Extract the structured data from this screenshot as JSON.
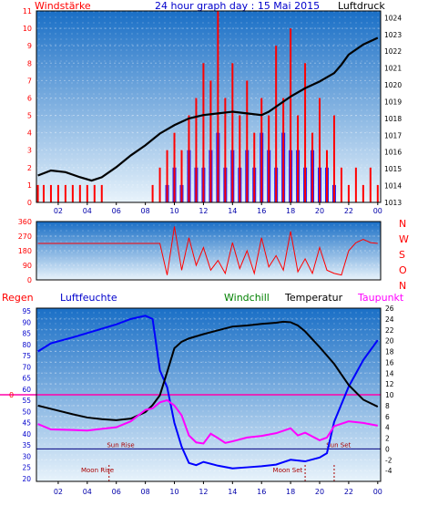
{
  "header": {
    "left_title": "Windstärke",
    "center_title": "24 hour graph day : 15 Mai 2015",
    "right_title": "Luftdruck"
  },
  "colors": {
    "plot_top": "#1a6fc6",
    "plot_bottom": "#e8f3fb",
    "wind": "#ff0000",
    "gust": "#0000ff",
    "pressure": "#000000",
    "dir": "#ff0000",
    "temperature": "#000000",
    "humidity": "#0000ff",
    "dewpoint": "#ff00ff",
    "zero_line": "#ff00aa",
    "windchill_label": "#008000"
  },
  "chart_data": [
    {
      "type": "bar",
      "name": "wind-pressure",
      "x_ticks": [
        "02",
        "04",
        "06",
        "08",
        "10",
        "12",
        "14",
        "16",
        "18",
        "20",
        "22",
        "00"
      ],
      "y_left_ticks": [
        0,
        1,
        2,
        3,
        4,
        5,
        6,
        7,
        8,
        9,
        10,
        11
      ],
      "y_right_ticks": [
        1013,
        1014,
        1015,
        1016,
        1017,
        1018,
        1019,
        1020,
        1021,
        1022,
        1023,
        1024
      ],
      "ylim_left": [
        0,
        11
      ],
      "ylim_right": [
        1013,
        1024.4
      ],
      "xlim": [
        0.5,
        24.2
      ],
      "pressure": {
        "x": [
          0.6,
          1.5,
          2.5,
          3.5,
          4.3,
          5,
          6,
          7,
          8,
          9,
          10,
          11,
          12,
          13,
          14,
          15,
          16,
          16.5,
          17,
          18,
          19,
          20,
          21,
          21.5,
          22,
          23,
          24
        ],
        "y": [
          1014.6,
          1014.9,
          1014.8,
          1014.5,
          1014.3,
          1014.5,
          1015.1,
          1015.8,
          1016.4,
          1017.1,
          1017.6,
          1018.0,
          1018.2,
          1018.3,
          1018.4,
          1018.3,
          1018.2,
          1018.4,
          1018.7,
          1019.3,
          1019.8,
          1020.2,
          1020.7,
          1021.2,
          1021.8,
          1022.4,
          1022.8
        ]
      },
      "wind": {
        "x": [
          0.6,
          1,
          1.5,
          2,
          2.5,
          3,
          3.5,
          4,
          4.5,
          5,
          5.5,
          6,
          6.5,
          7,
          7.5,
          8,
          8.5,
          9,
          9.5,
          10,
          10.5,
          11,
          11.5,
          12,
          12.5,
          13,
          13.5,
          14,
          14.5,
          15,
          15.5,
          16,
          16.5,
          17,
          17.5,
          18,
          18.5,
          19,
          19.5,
          20,
          20.5,
          21,
          21.5,
          22,
          22.5,
          23,
          23.5,
          24
        ],
        "y": [
          1,
          1,
          1,
          1,
          1,
          1,
          1,
          1,
          1,
          1,
          0,
          0,
          0,
          0,
          0,
          0,
          1,
          2,
          3,
          4,
          3,
          5,
          6,
          8,
          7,
          11,
          6,
          8,
          5,
          7,
          4,
          6,
          5,
          9,
          6,
          10,
          5,
          8,
          4,
          6,
          3,
          5,
          2,
          1,
          2,
          1,
          2,
          1
        ]
      },
      "gust": {
        "x": [
          9,
          9.5,
          10,
          10.5,
          11,
          11.5,
          12,
          12.5,
          13,
          13.5,
          14,
          14.5,
          15,
          15.5,
          16,
          16.5,
          17,
          17.5,
          18,
          18.5,
          19,
          19.5,
          20,
          20.5,
          21,
          21.5
        ],
        "y": [
          0,
          1,
          2,
          1,
          3,
          2,
          2,
          3,
          4,
          2,
          3,
          2,
          3,
          2,
          4,
          3,
          2,
          4,
          3,
          3,
          2,
          3,
          2,
          2,
          1,
          0
        ]
      }
    },
    {
      "type": "line",
      "name": "wind-direction",
      "y_ticks": [
        0,
        90,
        180,
        270,
        360
      ],
      "compass_labels": [
        "N",
        "W",
        "S",
        "O",
        "N"
      ],
      "ylim": [
        0,
        360
      ],
      "direction": {
        "x": [
          0.6,
          2,
          4,
          6,
          8,
          9,
          9.5,
          10,
          10.5,
          11,
          11.5,
          12,
          12.5,
          13,
          13.5,
          14,
          14.5,
          15,
          15.5,
          16,
          16.5,
          17,
          17.5,
          18,
          18.5,
          19,
          19.5,
          20,
          20.5,
          21,
          21.5,
          22,
          22.5,
          23,
          23.5,
          24
        ],
        "y": [
          225,
          225,
          225,
          225,
          225,
          225,
          30,
          330,
          60,
          260,
          90,
          200,
          60,
          120,
          40,
          230,
          70,
          180,
          40,
          260,
          80,
          150,
          60,
          300,
          50,
          130,
          40,
          200,
          60,
          40,
          30,
          180,
          230,
          250,
          230,
          225
        ]
      }
    },
    {
      "type": "line",
      "name": "temp-humidity",
      "series_labels": [
        "Regen",
        "Luftfeuchte",
        "Windchill",
        "Temperatur",
        "Taupunkt"
      ],
      "y_left_ticks": [
        30,
        35,
        40,
        45,
        50,
        55,
        60,
        65,
        70,
        75,
        80,
        85,
        90,
        95
      ],
      "y_left_extra_ticks": [
        20,
        25
      ],
      "y_right_ticks": [
        -4,
        -2,
        0,
        2,
        4,
        6,
        8,
        10,
        12,
        14,
        16,
        18,
        20,
        22,
        24,
        26
      ],
      "ylim_right": [
        -6,
        26
      ],
      "zero_label": "0",
      "humidity": {
        "x": [
          0.6,
          1.5,
          3,
          4,
          5,
          6,
          7,
          8,
          8.5,
          9,
          9.5,
          10,
          10.5,
          11,
          11.5,
          12,
          13,
          14,
          15,
          16,
          17,
          18,
          19,
          20,
          20.5,
          21,
          22,
          23,
          24
        ],
        "y": [
          18,
          19.5,
          20.6,
          21.4,
          22.2,
          23.0,
          24.0,
          24.6,
          24.0,
          14.5,
          11.4,
          4.8,
          0.4,
          -2.6,
          -3.0,
          -2.4,
          -3.1,
          -3.6,
          -3.4,
          -3.2,
          -2.9,
          -2.0,
          -2.3,
          -1.6,
          -0.8,
          5.0,
          11.5,
          16.4,
          20.1
        ]
      },
      "temperature": {
        "x": [
          0.6,
          1.5,
          3,
          4,
          5,
          6,
          7,
          8,
          8.5,
          9,
          9.5,
          10,
          10.5,
          11,
          12,
          13,
          14,
          15,
          16,
          17,
          17.5,
          18,
          18.5,
          19,
          20,
          21,
          22,
          23,
          24
        ],
        "y": [
          8,
          7.4,
          6.4,
          5.8,
          5.5,
          5.3,
          5.6,
          6.8,
          8.1,
          9.9,
          14.2,
          18.6,
          19.8,
          20.4,
          21.2,
          21.9,
          22.6,
          22.8,
          23.1,
          23.3,
          23.5,
          23.4,
          22.8,
          21.7,
          18.8,
          15.7,
          11.8,
          9.1,
          7.8
        ]
      },
      "dewpoint": {
        "x": [
          0.6,
          1.5,
          3,
          4,
          5,
          6,
          7,
          8,
          8.5,
          9,
          9.5,
          10,
          10.5,
          11,
          11.5,
          12,
          12.5,
          13,
          13.5,
          14,
          15,
          16,
          17,
          18,
          18.5,
          19,
          20,
          20.5,
          21,
          22,
          23,
          24
        ],
        "y": [
          4.6,
          3.6,
          3.5,
          3.4,
          3.7,
          4.0,
          5.1,
          7.2,
          7.5,
          8.6,
          9.0,
          8.0,
          6.2,
          2.5,
          1.2,
          1.0,
          2.8,
          2.0,
          1.1,
          1.4,
          2.1,
          2.4,
          2.9,
          3.8,
          2.5,
          3.0,
          1.6,
          2.1,
          4.2,
          5.1,
          4.8,
          4.3
        ]
      },
      "windchill": {
        "x": [
          0.6,
          24
        ],
        "y": [
          0,
          0
        ]
      },
      "annotations": {
        "sun_rise": "Sun Rise",
        "sun_set": "Sun Set",
        "moon_rise": "Moon Rise",
        "moon_set": "Moon Set"
      }
    }
  ]
}
